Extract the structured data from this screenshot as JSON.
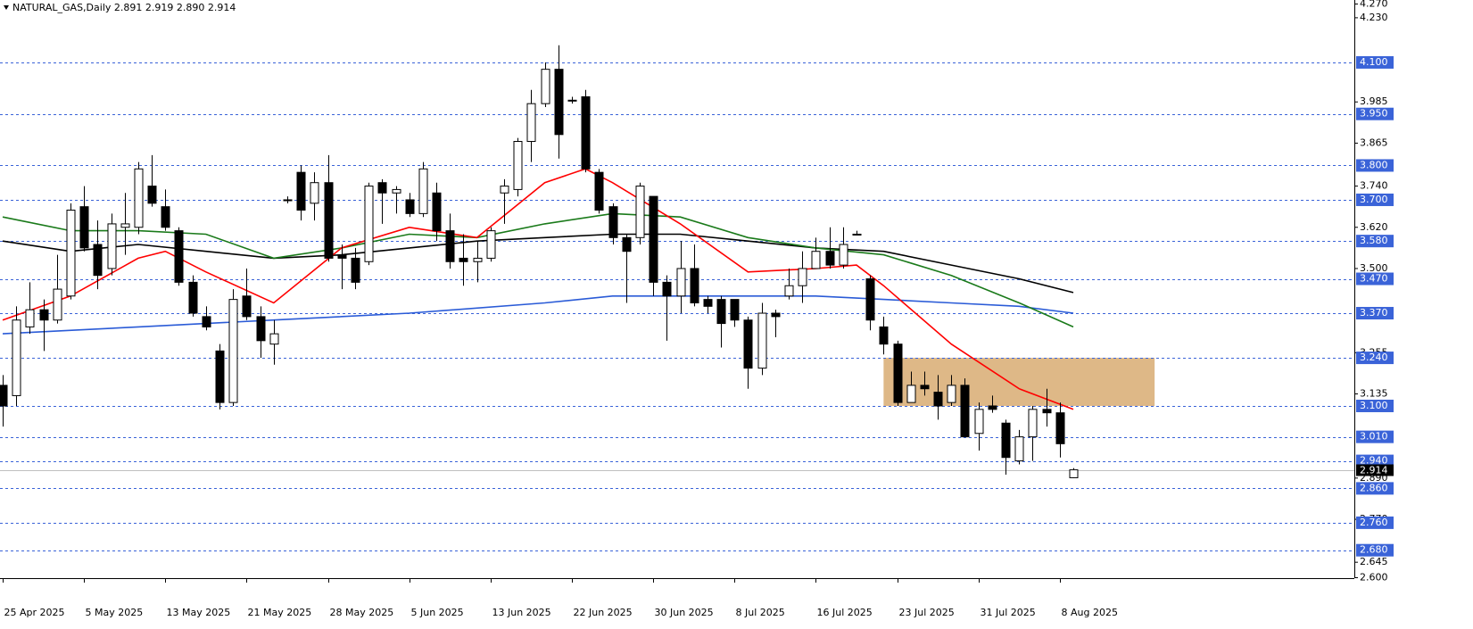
{
  "chart_data": {
    "type": "candlestick",
    "title": "NATURAL_GAS,Daily 2.891 2.919 2.890 2.914",
    "categories": [
      "25 Apr 2025",
      null,
      null,
      null,
      null,
      null,
      "5 May 2025",
      null,
      null,
      null,
      null,
      null,
      "13 May 2025",
      null,
      null,
      null,
      null,
      null,
      "21 May 2025",
      null,
      null,
      null,
      null,
      null,
      "28 May 2025",
      null,
      null,
      null,
      null,
      null,
      "5 Jun 2025",
      null,
      null,
      null,
      null,
      null,
      "13 Jun 2025",
      null,
      null,
      null,
      null,
      null,
      "22 Jun 2025",
      null,
      null,
      null,
      null,
      null,
      "30 Jun 2025",
      null,
      null,
      null,
      null,
      null,
      "8 Jul 2025",
      null,
      null,
      null,
      null,
      null,
      "16 Jul 2025",
      null,
      null,
      null,
      null,
      null,
      "23 Jul 2025",
      null,
      null,
      null,
      null,
      null,
      "31 Jul 2025",
      null,
      null,
      null,
      null,
      null,
      "8 Aug 2025",
      null
    ],
    "open": [
      3.16,
      3.13,
      3.33,
      3.38,
      3.35,
      3.42,
      3.68,
      3.57,
      3.5,
      3.62,
      3.62,
      3.74,
      3.68,
      3.61,
      3.46,
      3.36,
      3.26,
      3.11,
      3.42,
      3.36,
      3.28,
      3.7,
      3.78,
      3.69,
      3.75,
      3.54,
      3.53,
      3.52,
      3.75,
      3.72,
      3.7,
      3.66,
      3.72,
      3.61,
      3.53,
      3.52,
      3.53,
      3.72,
      3.73,
      3.87,
      3.98,
      4.08,
      3.99,
      4.0,
      3.78,
      3.68,
      3.59,
      3.59,
      3.71,
      3.46,
      3.42,
      3.5,
      3.41,
      3.41,
      3.41,
      3.35,
      3.21,
      3.37,
      3.42,
      3.45,
      3.5,
      3.55,
      3.51,
      3.6,
      3.47,
      3.33,
      3.28,
      3.11,
      3.16,
      3.14,
      3.11,
      3.16,
      3.02,
      3.1,
      3.05,
      2.94,
      3.01,
      3.09,
      3.08,
      2.891
    ],
    "high": [
      3.19,
      3.39,
      3.46,
      3.41,
      3.54,
      3.69,
      3.74,
      3.64,
      3.66,
      3.72,
      3.81,
      3.83,
      3.73,
      3.62,
      3.48,
      3.39,
      3.28,
      3.44,
      3.5,
      3.39,
      3.35,
      3.71,
      3.8,
      3.78,
      3.83,
      3.57,
      3.56,
      3.75,
      3.76,
      3.74,
      3.72,
      3.81,
      3.75,
      3.66,
      3.6,
      3.58,
      3.62,
      3.76,
      3.88,
      4.02,
      4.1,
      4.15,
      4.0,
      4.02,
      3.79,
      3.69,
      3.6,
      3.75,
      3.71,
      3.48,
      3.58,
      3.57,
      3.42,
      3.42,
      3.41,
      3.36,
      3.4,
      3.38,
      3.5,
      3.55,
      3.59,
      3.62,
      3.62,
      3.61,
      3.48,
      3.36,
      3.29,
      3.2,
      3.2,
      3.19,
      3.19,
      3.18,
      3.11,
      3.13,
      3.06,
      3.03,
      3.1,
      3.15,
      3.11,
      2.919
    ],
    "low": [
      3.04,
      3.1,
      3.31,
      3.26,
      3.34,
      3.41,
      3.55,
      3.44,
      3.48,
      3.54,
      3.6,
      3.68,
      3.61,
      3.45,
      3.36,
      3.32,
      3.09,
      3.1,
      3.35,
      3.24,
      3.22,
      3.69,
      3.64,
      3.64,
      3.52,
      3.44,
      3.44,
      3.51,
      3.63,
      3.66,
      3.65,
      3.65,
      3.58,
      3.5,
      3.45,
      3.46,
      3.52,
      3.63,
      3.71,
      3.81,
      3.97,
      3.82,
      3.98,
      3.78,
      3.66,
      3.57,
      3.4,
      3.57,
      3.42,
      3.29,
      3.37,
      3.39,
      3.37,
      3.27,
      3.33,
      3.15,
      3.19,
      3.3,
      3.41,
      3.4,
      3.5,
      3.5,
      3.5,
      3.6,
      3.32,
      3.25,
      3.1,
      3.11,
      3.13,
      3.06,
      3.1,
      3.01,
      2.97,
      3.08,
      2.9,
      2.93,
      2.94,
      3.04,
      2.95,
      2.89
    ],
    "close": [
      3.1,
      3.35,
      3.38,
      3.35,
      3.44,
      3.67,
      3.56,
      3.48,
      3.63,
      3.63,
      3.79,
      3.69,
      3.62,
      3.46,
      3.37,
      3.33,
      3.11,
      3.41,
      3.36,
      3.29,
      3.31,
      3.7,
      3.67,
      3.75,
      3.53,
      3.53,
      3.46,
      3.74,
      3.72,
      3.73,
      3.66,
      3.79,
      3.61,
      3.52,
      3.52,
      3.53,
      3.61,
      3.74,
      3.87,
      3.98,
      4.08,
      3.89,
      3.99,
      3.79,
      3.67,
      3.59,
      3.55,
      3.74,
      3.46,
      3.42,
      3.5,
      3.4,
      3.39,
      3.34,
      3.35,
      3.21,
      3.37,
      3.36,
      3.45,
      3.5,
      3.55,
      3.51,
      3.57,
      3.6,
      3.35,
      3.28,
      3.11,
      3.16,
      3.15,
      3.1,
      3.16,
      3.01,
      3.09,
      3.09,
      2.95,
      3.01,
      3.09,
      3.08,
      2.99,
      2.914
    ],
    "bull_color": "#ffffff",
    "bear_color": "#000000",
    "indicators": [
      {
        "color": "#2a5bd7",
        "x": [
          0,
          10,
          20,
          30,
          40,
          45,
          50,
          55,
          60,
          65,
          70,
          75,
          79
        ],
        "values": [
          3.31,
          3.33,
          3.35,
          3.37,
          3.4,
          3.42,
          3.42,
          3.42,
          3.42,
          3.41,
          3.4,
          3.39,
          3.37
        ]
      },
      {
        "color": "#000000",
        "x": [
          0,
          5,
          10,
          15,
          20,
          25,
          30,
          35,
          40,
          45,
          50,
          55,
          60,
          65,
          70,
          75,
          79
        ],
        "values": [
          3.58,
          3.55,
          3.57,
          3.55,
          3.53,
          3.54,
          3.56,
          3.58,
          3.59,
          3.6,
          3.6,
          3.58,
          3.56,
          3.55,
          3.51,
          3.47,
          3.43
        ]
      },
      {
        "color": "#1a7a1a",
        "x": [
          0,
          5,
          10,
          15,
          20,
          25,
          30,
          35,
          40,
          45,
          50,
          55,
          60,
          65,
          70,
          75,
          79
        ],
        "values": [
          3.65,
          3.61,
          3.61,
          3.6,
          3.53,
          3.56,
          3.6,
          3.59,
          3.63,
          3.66,
          3.65,
          3.59,
          3.56,
          3.54,
          3.48,
          3.4,
          3.33
        ]
      },
      {
        "color": "#ff0000",
        "x": [
          0,
          5,
          10,
          12,
          15,
          20,
          25,
          30,
          35,
          40,
          43,
          45,
          50,
          55,
          60,
          63,
          65,
          70,
          75,
          79
        ],
        "values": [
          3.35,
          3.42,
          3.53,
          3.55,
          3.49,
          3.4,
          3.56,
          3.62,
          3.59,
          3.75,
          3.79,
          3.75,
          3.63,
          3.49,
          3.5,
          3.51,
          3.45,
          3.28,
          3.15,
          3.09
        ]
      }
    ],
    "zone": {
      "x": [
        65,
        85
      ],
      "y": [
        3.1,
        3.24
      ],
      "color": "#deb887"
    },
    "ylim": [
      2.6,
      4.27
    ],
    "yticks": [
      {
        "value": 4.27,
        "label": "4.270"
      },
      {
        "value": 4.23,
        "label": "4.230"
      },
      3.985,
      3.865,
      {
        "value": 3.74,
        "label": "3.740"
      },
      {
        "value": 3.62,
        "label": "3.620"
      },
      {
        "value": 3.5,
        "label": "3.500"
      },
      3.255,
      3.135,
      {
        "value": 2.89,
        "label": "2.890"
      },
      {
        "value": 2.77,
        "label": "2.770"
      },
      2.645,
      {
        "value": 2.6,
        "label": "2.600"
      }
    ],
    "levels": [
      {
        "value": 4.1,
        "label": "4.100"
      },
      {
        "value": 3.95,
        "label": "3.950"
      },
      {
        "value": 3.8,
        "label": "3.800"
      },
      {
        "value": 3.7,
        "label": "3.700"
      },
      {
        "value": 3.58,
        "label": "3.580"
      },
      {
        "value": 3.47,
        "label": "3.470"
      },
      {
        "value": 3.37,
        "label": "3.370"
      },
      {
        "value": 3.24,
        "label": "3.240"
      },
      {
        "value": 3.1,
        "label": "3.100"
      },
      {
        "value": 3.01,
        "label": "3.010"
      },
      {
        "value": 2.94,
        "label": "2.940"
      },
      {
        "value": 2.86,
        "label": "2.860"
      },
      {
        "value": 2.76,
        "label": "2.760"
      },
      {
        "value": 2.68,
        "label": "2.680"
      }
    ],
    "level_color": "#3a63d8",
    "last_price": 2.914
  }
}
